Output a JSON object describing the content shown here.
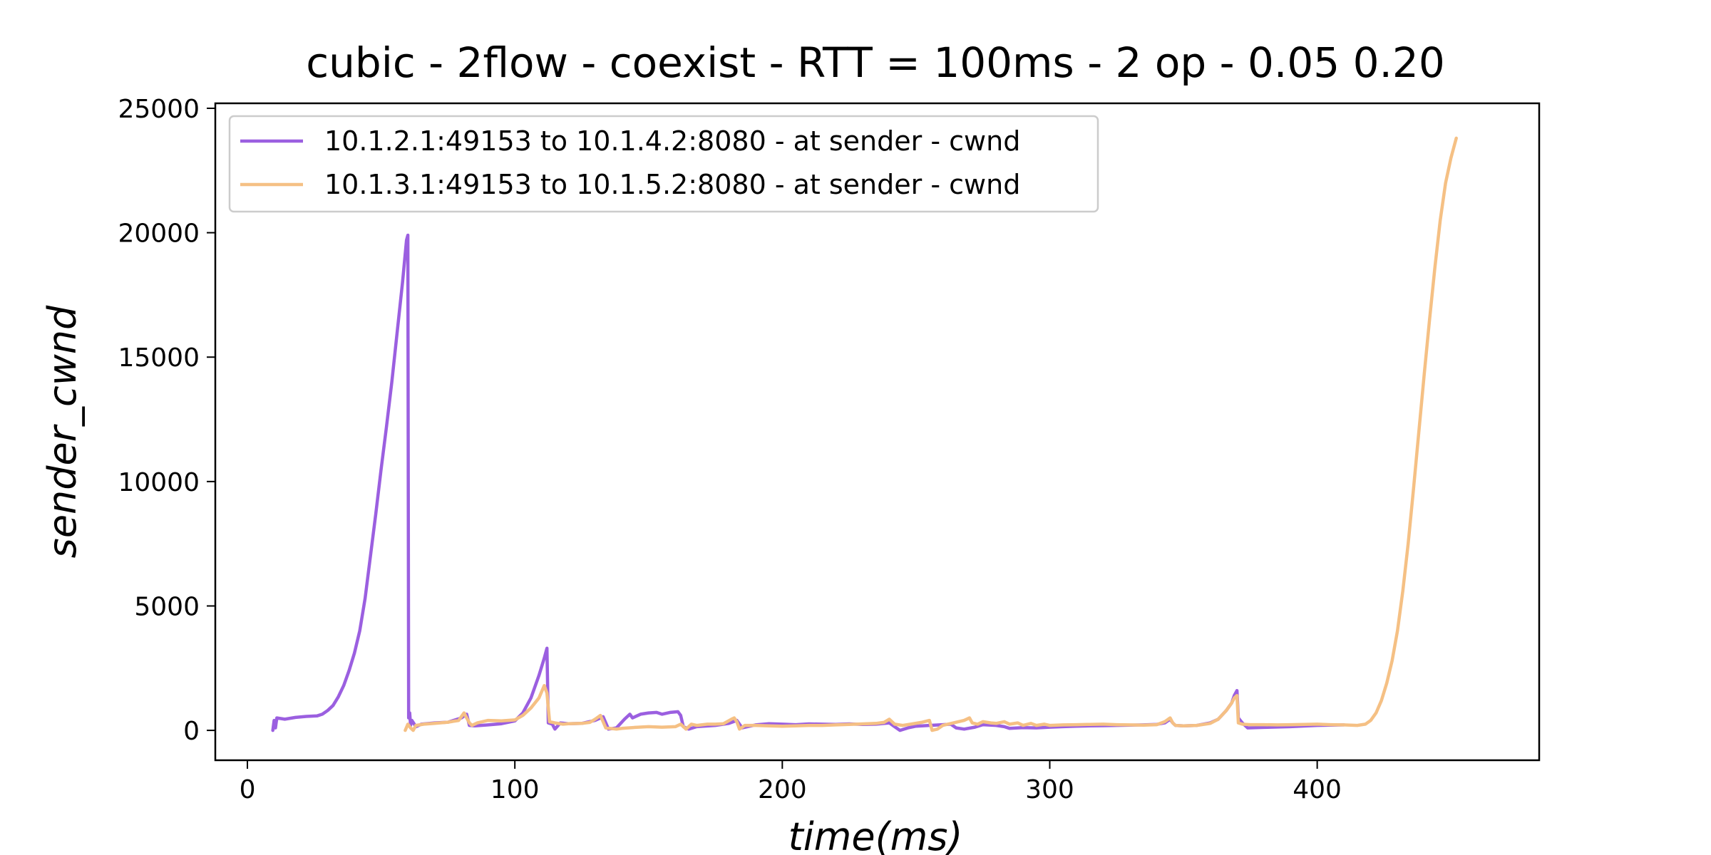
{
  "chart_data": {
    "type": "line",
    "title": "cubic - 2flow - coexist - RTT = 100ms - 2 op - 0.05 0.20",
    "xlabel": "time(ms)",
    "ylabel": "sender_cwnd",
    "xlim": [
      -12,
      483
    ],
    "ylim": [
      -1200,
      25200
    ],
    "xticks": [
      0,
      100,
      200,
      300,
      400
    ],
    "yticks": [
      0,
      5000,
      10000,
      15000,
      20000,
      25000
    ],
    "grid": false,
    "legend_position": "top-left",
    "series": [
      {
        "name": "10.1.2.1:49153 to 10.1.4.2:8080 - at sender - cwnd",
        "color": "#9b5fe0",
        "points": [
          [
            9.5,
            0
          ],
          [
            10,
            400
          ],
          [
            10.5,
            100
          ],
          [
            11,
            500
          ],
          [
            14,
            450
          ],
          [
            18,
            520
          ],
          [
            22,
            560
          ],
          [
            26,
            580
          ],
          [
            28,
            650
          ],
          [
            30,
            800
          ],
          [
            32,
            1000
          ],
          [
            34,
            1350
          ],
          [
            36,
            1800
          ],
          [
            38,
            2400
          ],
          [
            40,
            3100
          ],
          [
            42,
            4000
          ],
          [
            44,
            5300
          ],
          [
            46,
            7000
          ],
          [
            48,
            8700
          ],
          [
            50,
            10500
          ],
          [
            52,
            12200
          ],
          [
            54,
            14000
          ],
          [
            56,
            16000
          ],
          [
            58,
            18000
          ],
          [
            59.5,
            19700
          ],
          [
            60,
            19900
          ],
          [
            60.3,
            500
          ],
          [
            60.7,
            700
          ],
          [
            61,
            200
          ],
          [
            61.5,
            400
          ],
          [
            63,
            150
          ],
          [
            65,
            250
          ],
          [
            70,
            300
          ],
          [
            75,
            330
          ],
          [
            80,
            500
          ],
          [
            82,
            650
          ],
          [
            83,
            200
          ],
          [
            85,
            180
          ],
          [
            90,
            220
          ],
          [
            95,
            270
          ],
          [
            100,
            380
          ],
          [
            103,
            700
          ],
          [
            106,
            1300
          ],
          [
            109,
            2200
          ],
          [
            111,
            2900
          ],
          [
            112,
            3300
          ],
          [
            112.5,
            300
          ],
          [
            114,
            250
          ],
          [
            115,
            50
          ],
          [
            117,
            300
          ],
          [
            120,
            270
          ],
          [
            125,
            280
          ],
          [
            130,
            400
          ],
          [
            133,
            550
          ],
          [
            135,
            50
          ],
          [
            138,
            100
          ],
          [
            141,
            450
          ],
          [
            143,
            650
          ],
          [
            144,
            500
          ],
          [
            147,
            650
          ],
          [
            150,
            700
          ],
          [
            153,
            720
          ],
          [
            155,
            650
          ],
          [
            158,
            720
          ],
          [
            161,
            750
          ],
          [
            162,
            600
          ],
          [
            163,
            150
          ],
          [
            165,
            50
          ],
          [
            168,
            150
          ],
          [
            175,
            200
          ],
          [
            180,
            280
          ],
          [
            183,
            400
          ],
          [
            185,
            100
          ],
          [
            190,
            220
          ],
          [
            195,
            270
          ],
          [
            200,
            250
          ],
          [
            205,
            230
          ],
          [
            210,
            260
          ],
          [
            215,
            250
          ],
          [
            220,
            240
          ],
          [
            225,
            260
          ],
          [
            230,
            240
          ],
          [
            235,
            250
          ],
          [
            240,
            300
          ],
          [
            242,
            150
          ],
          [
            244,
            0
          ],
          [
            247,
            100
          ],
          [
            250,
            170
          ],
          [
            255,
            200
          ],
          [
            260,
            230
          ],
          [
            263,
            250
          ],
          [
            265,
            100
          ],
          [
            268,
            50
          ],
          [
            272,
            130
          ],
          [
            275,
            230
          ],
          [
            280,
            200
          ],
          [
            283,
            150
          ],
          [
            285,
            80
          ],
          [
            288,
            100
          ],
          [
            290,
            110
          ],
          [
            295,
            100
          ],
          [
            300,
            130
          ],
          [
            305,
            150
          ],
          [
            310,
            170
          ],
          [
            315,
            180
          ],
          [
            320,
            190
          ],
          [
            325,
            200
          ],
          [
            330,
            210
          ],
          [
            335,
            220
          ],
          [
            340,
            240
          ],
          [
            343,
            300
          ],
          [
            345,
            450
          ],
          [
            346,
            300
          ],
          [
            347,
            200
          ],
          [
            350,
            180
          ],
          [
            355,
            200
          ],
          [
            360,
            300
          ],
          [
            363,
            450
          ],
          [
            366,
            800
          ],
          [
            368,
            1100
          ],
          [
            369,
            1400
          ],
          [
            370,
            1600
          ],
          [
            370.5,
            500
          ],
          [
            372,
            300
          ],
          [
            374,
            100
          ],
          [
            380,
            120
          ],
          [
            390,
            150
          ],
          [
            400,
            200
          ],
          [
            410,
            220
          ]
        ]
      },
      {
        "name": "10.1.3.1:49153 to 10.1.5.2:8080 - at sender - cwnd",
        "color": "#f5c084",
        "points": [
          [
            59,
            0
          ],
          [
            60,
            250
          ],
          [
            61,
            100
          ],
          [
            62,
            0
          ],
          [
            63,
            200
          ],
          [
            66,
            250
          ],
          [
            70,
            280
          ],
          [
            75,
            330
          ],
          [
            79,
            400
          ],
          [
            81,
            700
          ],
          [
            82,
            500
          ],
          [
            83,
            300
          ],
          [
            84,
            200
          ],
          [
            86,
            300
          ],
          [
            90,
            400
          ],
          [
            95,
            380
          ],
          [
            100,
            420
          ],
          [
            103,
            600
          ],
          [
            106,
            900
          ],
          [
            109,
            1300
          ],
          [
            111,
            1800
          ],
          [
            112,
            1500
          ],
          [
            113,
            350
          ],
          [
            115,
            300
          ],
          [
            118,
            250
          ],
          [
            120,
            270
          ],
          [
            125,
            280
          ],
          [
            128,
            320
          ],
          [
            130,
            450
          ],
          [
            132,
            600
          ],
          [
            134,
            100
          ],
          [
            138,
            50
          ],
          [
            140,
            80
          ],
          [
            145,
            120
          ],
          [
            150,
            150
          ],
          [
            155,
            130
          ],
          [
            160,
            150
          ],
          [
            162,
            250
          ],
          [
            164,
            50
          ],
          [
            166,
            250
          ],
          [
            168,
            200
          ],
          [
            172,
            250
          ],
          [
            175,
            250
          ],
          [
            178,
            270
          ],
          [
            181,
            450
          ],
          [
            182,
            500
          ],
          [
            183,
            350
          ],
          [
            184,
            50
          ],
          [
            186,
            200
          ],
          [
            190,
            200
          ],
          [
            195,
            180
          ],
          [
            200,
            170
          ],
          [
            205,
            180
          ],
          [
            210,
            200
          ],
          [
            215,
            200
          ],
          [
            220,
            220
          ],
          [
            225,
            240
          ],
          [
            230,
            260
          ],
          [
            235,
            280
          ],
          [
            238,
            320
          ],
          [
            240,
            450
          ],
          [
            242,
            250
          ],
          [
            245,
            200
          ],
          [
            248,
            250
          ],
          [
            252,
            320
          ],
          [
            255,
            400
          ],
          [
            256,
            0
          ],
          [
            258,
            50
          ],
          [
            260,
            200
          ],
          [
            264,
            300
          ],
          [
            268,
            400
          ],
          [
            270,
            500
          ],
          [
            271,
            300
          ],
          [
            273,
            250
          ],
          [
            275,
            350
          ],
          [
            278,
            300
          ],
          [
            280,
            280
          ],
          [
            283,
            350
          ],
          [
            285,
            250
          ],
          [
            288,
            300
          ],
          [
            290,
            200
          ],
          [
            293,
            280
          ],
          [
            295,
            200
          ],
          [
            298,
            250
          ],
          [
            300,
            200
          ],
          [
            305,
            220
          ],
          [
            310,
            230
          ],
          [
            315,
            240
          ],
          [
            320,
            250
          ],
          [
            325,
            230
          ],
          [
            330,
            220
          ],
          [
            335,
            210
          ],
          [
            340,
            230
          ],
          [
            343,
            350
          ],
          [
            345,
            500
          ],
          [
            346,
            300
          ],
          [
            347,
            200
          ],
          [
            350,
            180
          ],
          [
            355,
            200
          ],
          [
            360,
            280
          ],
          [
            363,
            450
          ],
          [
            366,
            800
          ],
          [
            368,
            1100
          ],
          [
            369,
            1300
          ],
          [
            370,
            1400
          ],
          [
            370.5,
            300
          ],
          [
            372,
            250
          ],
          [
            375,
            230
          ],
          [
            380,
            230
          ],
          [
            385,
            220
          ],
          [
            390,
            230
          ],
          [
            395,
            240
          ],
          [
            400,
            250
          ],
          [
            405,
            230
          ],
          [
            410,
            220
          ],
          [
            415,
            200
          ],
          [
            418,
            250
          ],
          [
            420,
            400
          ],
          [
            422,
            700
          ],
          [
            424,
            1200
          ],
          [
            426,
            1900
          ],
          [
            428,
            2800
          ],
          [
            430,
            4000
          ],
          [
            432,
            5600
          ],
          [
            434,
            7500
          ],
          [
            436,
            9700
          ],
          [
            438,
            12000
          ],
          [
            440,
            14300
          ],
          [
            442,
            16500
          ],
          [
            444,
            18600
          ],
          [
            446,
            20500
          ],
          [
            448,
            22000
          ],
          [
            450,
            23000
          ],
          [
            452,
            23800
          ]
        ]
      }
    ]
  }
}
